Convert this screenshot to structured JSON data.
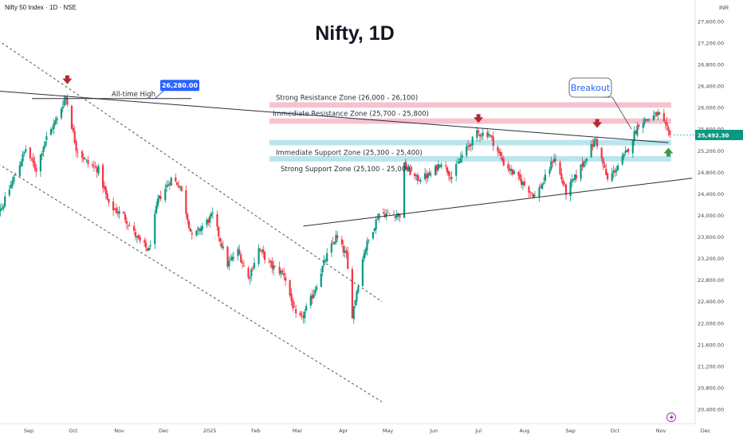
{
  "header": {
    "symbol": "Nifty 50 Index · 1D · NSE",
    "currency": "INR"
  },
  "chart_data": {
    "type": "candlestick",
    "title": "Nifty, 1D",
    "ylim": [
      20400,
      27600
    ],
    "y_ticks": [
      20400,
      20800,
      21200,
      21600,
      22000,
      22400,
      22800,
      23200,
      23600,
      24000,
      24400,
      24800,
      25200,
      25600,
      26000,
      26400,
      26800,
      27200,
      27600
    ],
    "x_ticks": [
      {
        "label": "Sep",
        "date": "2024-09-01"
      },
      {
        "label": "Oct",
        "date": "2024-10-01"
      },
      {
        "label": "Nov",
        "date": "2024-11-01"
      },
      {
        "label": "Dec",
        "date": "2024-12-01"
      },
      {
        "label": "2025",
        "date": "2025-01-01"
      },
      {
        "label": "Feb",
        "date": "2025-02-01"
      },
      {
        "label": "Mar",
        "date": "2025-03-01"
      },
      {
        "label": "Apr",
        "date": "2025-04-01"
      },
      {
        "label": "May",
        "date": "2025-05-01"
      },
      {
        "label": "Jun",
        "date": "2025-06-01"
      },
      {
        "label": "Jul",
        "date": "2025-07-01"
      },
      {
        "label": "Aug",
        "date": "2025-08-01"
      },
      {
        "label": "Sep",
        "date": "2025-09-01"
      },
      {
        "label": "Oct",
        "date": "2025-10-01"
      },
      {
        "label": "Nov",
        "date": "2025-11-01"
      },
      {
        "label": "Dec",
        "date": "2025-12-01"
      }
    ],
    "close_anchors": [
      [
        "2024-08-05",
        24100
      ],
      [
        "2024-08-14",
        24150
      ],
      [
        "2024-08-30",
        25235
      ],
      [
        "2024-09-06",
        24850
      ],
      [
        "2024-09-12",
        25390
      ],
      [
        "2024-09-20",
        25790
      ],
      [
        "2024-09-26",
        26216
      ],
      [
        "2024-10-03",
        25250
      ],
      [
        "2024-10-11",
        24960
      ],
      [
        "2024-10-18",
        24850
      ],
      [
        "2024-10-25",
        24180
      ],
      [
        "2024-11-04",
        23995
      ],
      [
        "2024-11-14",
        23530
      ],
      [
        "2024-11-21",
        23350
      ],
      [
        "2024-11-27",
        24270
      ],
      [
        "2024-12-06",
        24680
      ],
      [
        "2024-12-12",
        24550
      ],
      [
        "2024-12-20",
        23590
      ],
      [
        "2025-01-03",
        24000
      ],
      [
        "2025-01-13",
        23090
      ],
      [
        "2025-01-20",
        23340
      ],
      [
        "2025-01-27",
        22830
      ],
      [
        "2025-02-03",
        23380
      ],
      [
        "2025-02-11",
        23070
      ],
      [
        "2025-02-20",
        22910
      ],
      [
        "2025-02-28",
        22120
      ],
      [
        "2025-03-04",
        22080
      ],
      [
        "2025-03-11",
        22500
      ],
      [
        "2025-03-20",
        23190
      ],
      [
        "2025-03-27",
        23600
      ],
      [
        "2025-04-03",
        23250
      ],
      [
        "2025-04-07",
        22160
      ],
      [
        "2025-04-15",
        23330
      ],
      [
        "2025-04-25",
        24040
      ],
      [
        "2025-05-09",
        24010
      ],
      [
        "2025-05-12",
        24920
      ],
      [
        "2025-05-20",
        24680
      ],
      [
        "2025-05-30",
        24750
      ],
      [
        "2025-06-06",
        25000
      ],
      [
        "2025-06-13",
        24720
      ],
      [
        "2025-06-20",
        25110
      ],
      [
        "2025-06-30",
        25520
      ],
      [
        "2025-07-08",
        25520
      ],
      [
        "2025-07-18",
        24970
      ],
      [
        "2025-07-28",
        24680
      ],
      [
        "2025-08-08",
        24360
      ],
      [
        "2025-08-14",
        24630
      ],
      [
        "2025-08-21",
        25080
      ],
      [
        "2025-08-29",
        24430
      ],
      [
        "2025-09-05",
        24740
      ],
      [
        "2025-09-12",
        25110
      ],
      [
        "2025-09-18",
        25420
      ],
      [
        "2025-09-26",
        24650
      ],
      [
        "2025-10-01",
        24840
      ],
      [
        "2025-10-09",
        25180
      ],
      [
        "2025-10-17",
        25710
      ],
      [
        "2025-10-24",
        25800
      ],
      [
        "2025-10-30",
        25880
      ],
      [
        "2025-11-07",
        25492
      ]
    ],
    "zones": [
      {
        "label": "Strong Resistance Zone (26,000 - 26,100)",
        "low": 26000,
        "high": 26100,
        "color": "#f5b3c0"
      },
      {
        "label": "Immediate Resistance Zone (25,700 - 25,800)",
        "low": 25700,
        "high": 25800,
        "color": "#f5b3c0"
      },
      {
        "label": "Immediate Support Zone (25,300 - 25,400)",
        "low": 25300,
        "high": 25400,
        "color": "#a8dfe8"
      },
      {
        "label": "Strong Support Zone (25,100 - 25,000)",
        "low": 25000,
        "high": 25100,
        "color": "#a8dfe8"
      }
    ],
    "all_time_high": {
      "label": "All-time High",
      "value_label": "26,280.00",
      "value": 26280,
      "date": "2024-09-27"
    },
    "breakout_label": "Breakout",
    "last_price": {
      "value": 25492.3,
      "label": "25,492.30"
    },
    "trendlines": [
      {
        "name": "descending-resistance-trendline",
        "style": "solid",
        "from": [
          "2024-08-01",
          26330
        ],
        "to": [
          "2025-11-06",
          25350
        ]
      },
      {
        "name": "rising-support-trendline",
        "style": "solid",
        "from": [
          "2025-03-05",
          23800
        ],
        "to": [
          "2025-11-22",
          24690
        ]
      },
      {
        "name": "channel-upper-line",
        "style": "dashed",
        "from": [
          "2024-08-06",
          27350
        ],
        "to": [
          "2025-04-27",
          22400
        ]
      },
      {
        "name": "channel-lower-line",
        "style": "dashed",
        "from": [
          "2024-08-06",
          25050
        ],
        "to": [
          "2025-04-27",
          20540
        ]
      }
    ],
    "markers": [
      {
        "type": "down-arrow",
        "date": "2024-09-27",
        "value": 26510,
        "color": "#b22833"
      },
      {
        "type": "down-arrow",
        "date": "2025-07-01",
        "value": 25790,
        "color": "#b22833"
      },
      {
        "type": "down-arrow",
        "date": "2025-09-19",
        "value": 25700,
        "color": "#b22833"
      },
      {
        "type": "up-arrow",
        "date": "2025-11-06",
        "value": 25180,
        "color": "#3a9a4b"
      }
    ],
    "colors": {
      "up": "#089981",
      "down": "#f23645"
    },
    "grid": false
  }
}
